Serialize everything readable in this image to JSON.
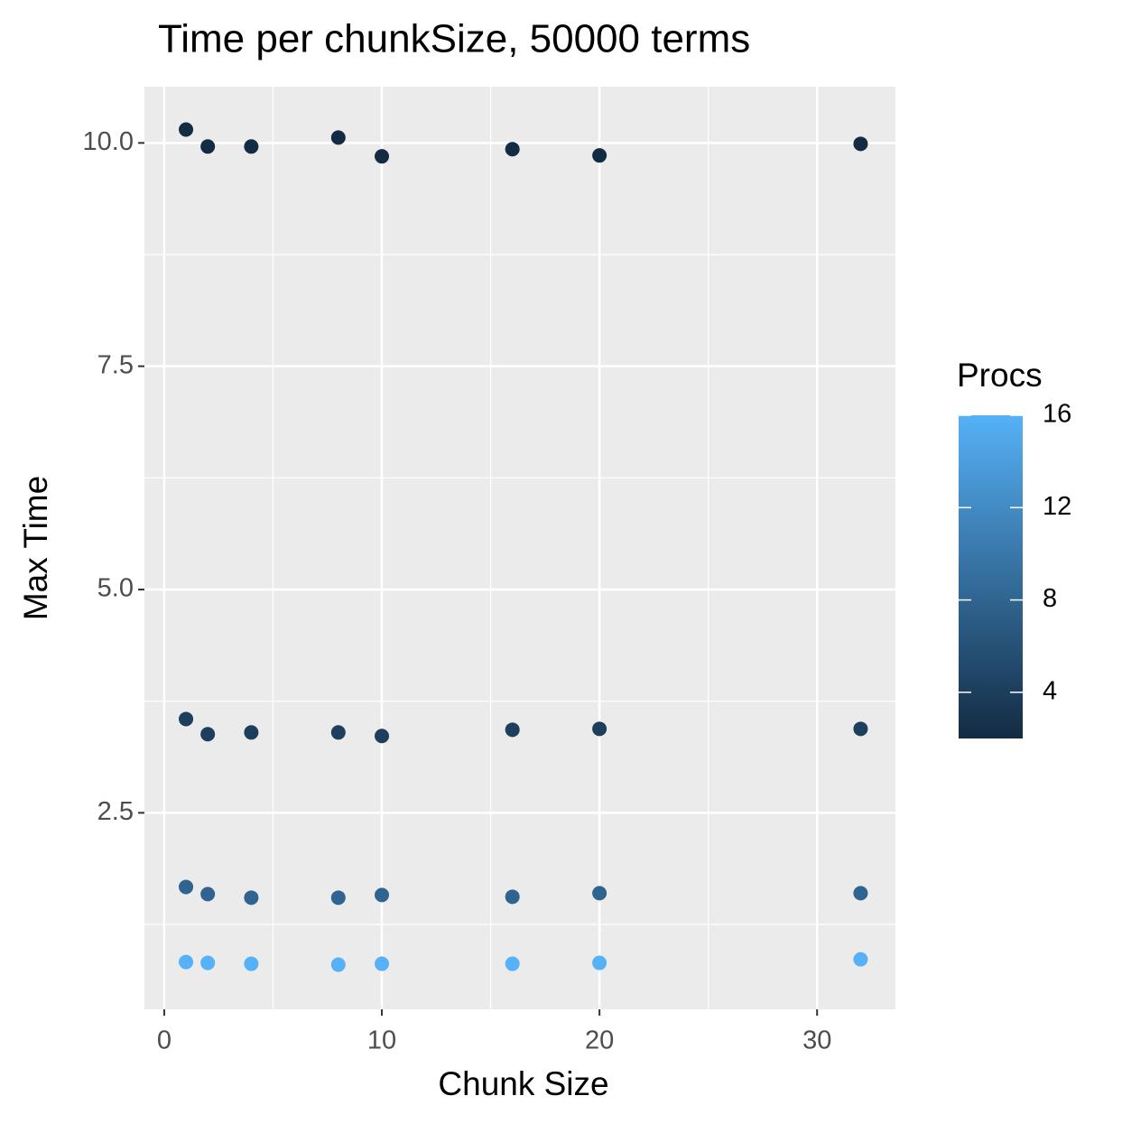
{
  "chart_data": {
    "type": "scatter",
    "title": "Time per chunkSize, 50000 terms",
    "x_label": "Chunk Size",
    "y_label": "Max Time",
    "x": [
      1,
      2,
      4,
      8,
      10,
      16,
      20,
      32
    ],
    "series": [
      {
        "procs": 2,
        "values": [
          10.15,
          9.96,
          9.96,
          10.06,
          9.85,
          9.93,
          9.86,
          9.99
        ]
      },
      {
        "procs": 4,
        "values": [
          3.55,
          3.38,
          3.4,
          3.4,
          3.36,
          3.43,
          3.44,
          3.44
        ]
      },
      {
        "procs": 8,
        "values": [
          1.67,
          1.59,
          1.55,
          1.55,
          1.58,
          1.56,
          1.6,
          1.6
        ]
      },
      {
        "procs": 16,
        "values": [
          0.83,
          0.82,
          0.81,
          0.8,
          0.81,
          0.81,
          0.82,
          0.86
        ]
      }
    ],
    "xlim": [
      -0.91,
      33.6
    ],
    "xticks": [
      0,
      10,
      20,
      30
    ],
    "ylim": [
      0.3,
      10.63
    ],
    "yticks": [
      {
        "value": 2.5,
        "label": "2.5"
      },
      {
        "value": 5,
        "label": "5.0"
      },
      7.5,
      {
        "value": 10,
        "label": "10.0"
      }
    ],
    "grid": true,
    "panel_color": "#EBEBEB",
    "color_scale": {
      "title": "Procs",
      "lim": [
        2,
        16
      ],
      "ticks": [
        4,
        8,
        12,
        16
      ],
      "low": "#132B43",
      "high": "#56B1F7"
    }
  }
}
